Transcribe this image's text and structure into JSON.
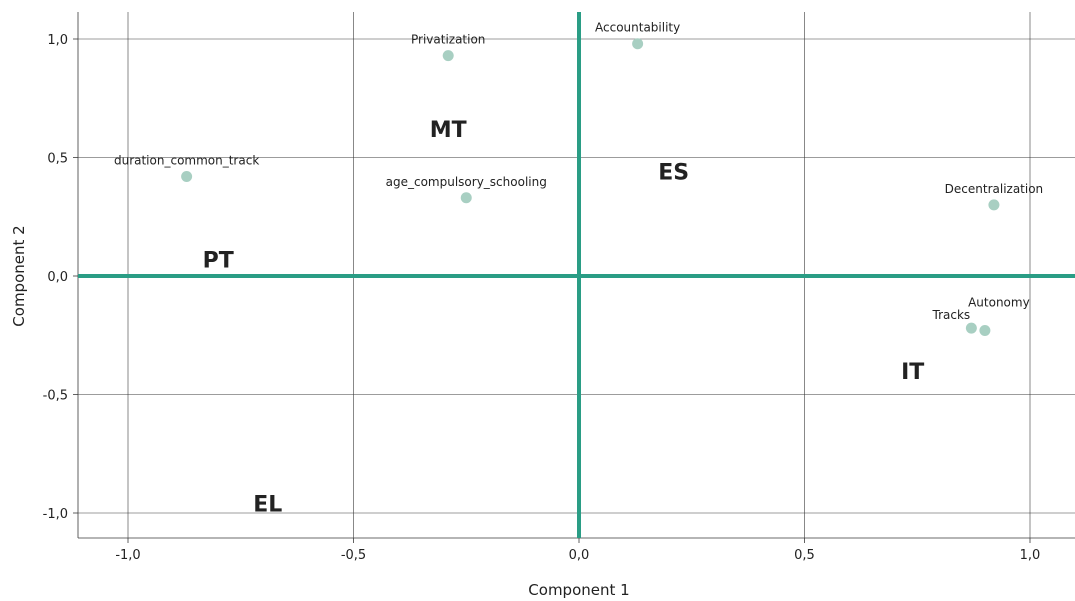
{
  "chart_data": {
    "type": "scatter",
    "title": "",
    "xlabel": "Component 1",
    "ylabel": "Component 2",
    "xlim": [
      -1.1,
      1.1
    ],
    "ylim": [
      -1.1,
      1.1
    ],
    "xticks": [
      -1.0,
      -0.5,
      0.0,
      0.5,
      1.0
    ],
    "yticks": [
      -1.0,
      -0.5,
      0.0,
      0.5,
      1.0
    ],
    "xtick_labels": [
      "-1,0",
      "-0,5",
      "0,0",
      "0,5",
      "1,0"
    ],
    "ytick_labels": [
      "-1,0",
      "-0,5",
      "0,0",
      "0,5",
      "1,0"
    ],
    "grid": true,
    "zero_lines": true,
    "colors": {
      "points": "#a8cfc2",
      "zero_lines": "#2a9d85",
      "grid": "#3a3a3a",
      "text": "#222222"
    },
    "points": [
      {
        "label": "Accountability",
        "x": 0.13,
        "y": 0.98
      },
      {
        "label": "Privatization",
        "x": -0.29,
        "y": 0.93
      },
      {
        "label": "duration_common_track",
        "x": -0.87,
        "y": 0.42
      },
      {
        "label": "age_compulsory_schooling",
        "x": -0.25,
        "y": 0.33
      },
      {
        "label": "Decentralization",
        "x": 0.92,
        "y": 0.3
      },
      {
        "label": "Tracks",
        "x": 0.87,
        "y": -0.22
      },
      {
        "label": "Autonomy",
        "x": 0.9,
        "y": -0.23
      }
    ],
    "region_labels": [
      {
        "text": "MT",
        "x": -0.29,
        "y": 0.62
      },
      {
        "text": "ES",
        "x": 0.21,
        "y": 0.44
      },
      {
        "text": "PT",
        "x": -0.8,
        "y": 0.07
      },
      {
        "text": "IT",
        "x": 0.74,
        "y": -0.4
      },
      {
        "text": "EL",
        "x": -0.69,
        "y": -0.96
      }
    ]
  }
}
